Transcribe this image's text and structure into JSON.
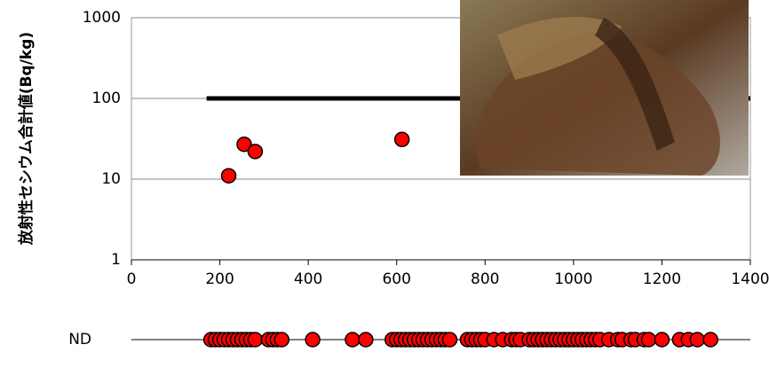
{
  "chart_data": {
    "type": "scatter",
    "y_label": "放射性セシウム合計値(Bq/kg)",
    "log_y": true,
    "xlim": [
      0,
      1400
    ],
    "xticks": [
      0,
      200,
      400,
      600,
      800,
      1000,
      1200,
      1400
    ],
    "ylim": [
      1,
      1000
    ],
    "yticks": [
      1,
      10,
      100,
      1000
    ],
    "grid": true,
    "series": [
      {
        "color": "#ff0000",
        "x": [
          220,
          255,
          280,
          612
        ],
        "values": [
          11,
          27,
          22,
          31
        ]
      }
    ],
    "reference_line": {
      "y": 100,
      "x": [
        170,
        1400
      ],
      "color": "#000000"
    },
    "nd": {
      "label": "ND",
      "color": "#ff0000",
      "x": [
        180,
        190,
        200,
        210,
        220,
        230,
        240,
        250,
        260,
        270,
        280,
        310,
        320,
        330,
        340,
        410,
        500,
        530,
        590,
        600,
        610,
        620,
        630,
        640,
        650,
        660,
        670,
        680,
        690,
        700,
        710,
        720,
        760,
        770,
        780,
        790,
        800,
        820,
        840,
        860,
        870,
        880,
        900,
        910,
        920,
        930,
        940,
        950,
        960,
        970,
        980,
        990,
        1000,
        1010,
        1020,
        1030,
        1040,
        1050,
        1060,
        1080,
        1100,
        1110,
        1130,
        1140,
        1160,
        1170,
        1200,
        1240,
        1260,
        1280,
        1310
      ]
    }
  }
}
